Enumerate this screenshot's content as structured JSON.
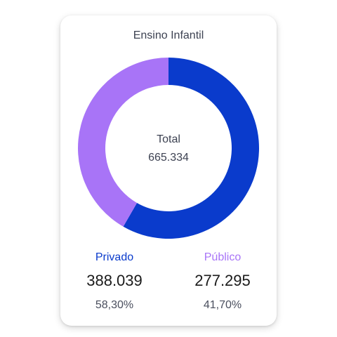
{
  "card": {
    "title": "Ensino Infantil",
    "center_label": "Total",
    "center_value": "665.334"
  },
  "stats": {
    "privado": {
      "label": "Privado",
      "value": "388.039",
      "percent": "58,30%",
      "color": "#0a3bcc"
    },
    "publico": {
      "label": "Público",
      "value": "277.295",
      "percent": "41,70%",
      "color": "#a874f7"
    }
  },
  "chart_data": {
    "type": "pie",
    "categories": [
      "Privado",
      "Público"
    ],
    "values": [
      388039,
      277295
    ],
    "percentages": [
      58.3,
      41.7
    ],
    "colors": [
      "#0a3bcc",
      "#a874f7"
    ],
    "title": "Ensino Infantil",
    "center_label": "Total",
    "center_value": "665.334"
  }
}
